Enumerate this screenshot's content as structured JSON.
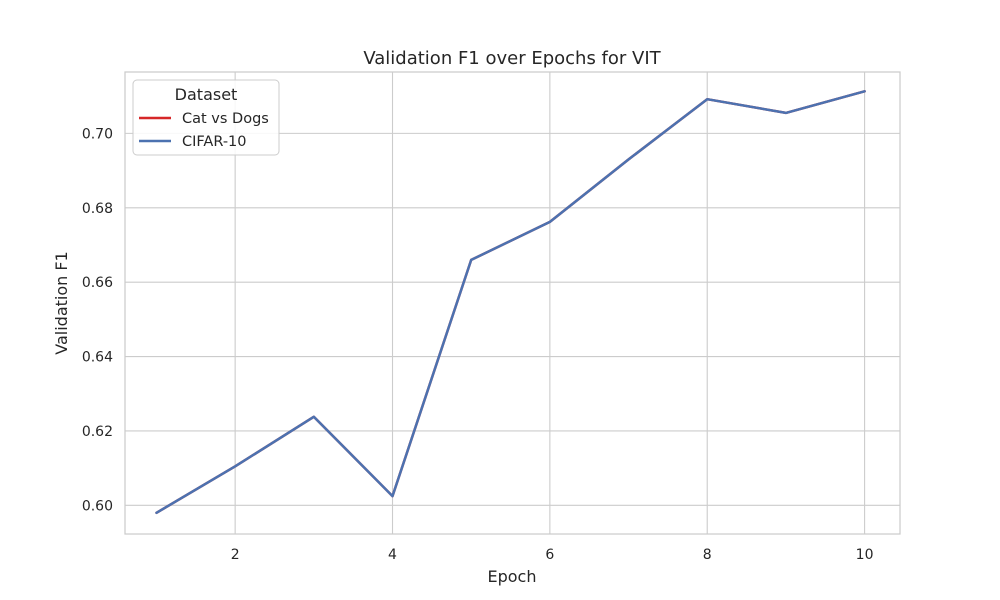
{
  "chart_data": {
    "type": "line",
    "title": "Validation F1 over Epochs for VIT",
    "xlabel": "Epoch",
    "ylabel": "Validation F1",
    "xlim": [
      0.6,
      10.45
    ],
    "ylim": [
      0.5923,
      0.7165
    ],
    "x_ticks": [
      2,
      4,
      6,
      8,
      10
    ],
    "y_ticks": [
      0.6,
      0.62,
      0.64,
      0.66,
      0.68,
      0.7
    ],
    "x_tick_labels": [
      "2",
      "4",
      "6",
      "8",
      "10"
    ],
    "y_tick_labels": [
      "0.60",
      "0.62",
      "0.64",
      "0.66",
      "0.68",
      "0.70"
    ],
    "grid": true,
    "legend": {
      "title": "Dataset",
      "position": "top-left"
    },
    "x": [
      1,
      2,
      3,
      4,
      5,
      6,
      7,
      8,
      9,
      10
    ],
    "series": [
      {
        "name": "Cat vs Dogs",
        "color": "#d62728",
        "values": [
          0.598,
          0.6105,
          0.6238,
          0.6025,
          0.666,
          0.6762,
          0.693,
          0.7092,
          0.7055,
          0.7113
        ]
      },
      {
        "name": "CIFAR-10",
        "color": "#4c72b0",
        "values": [
          0.598,
          0.6105,
          0.6238,
          0.6025,
          0.666,
          0.6762,
          0.693,
          0.7092,
          0.7055,
          0.7113
        ]
      }
    ]
  }
}
